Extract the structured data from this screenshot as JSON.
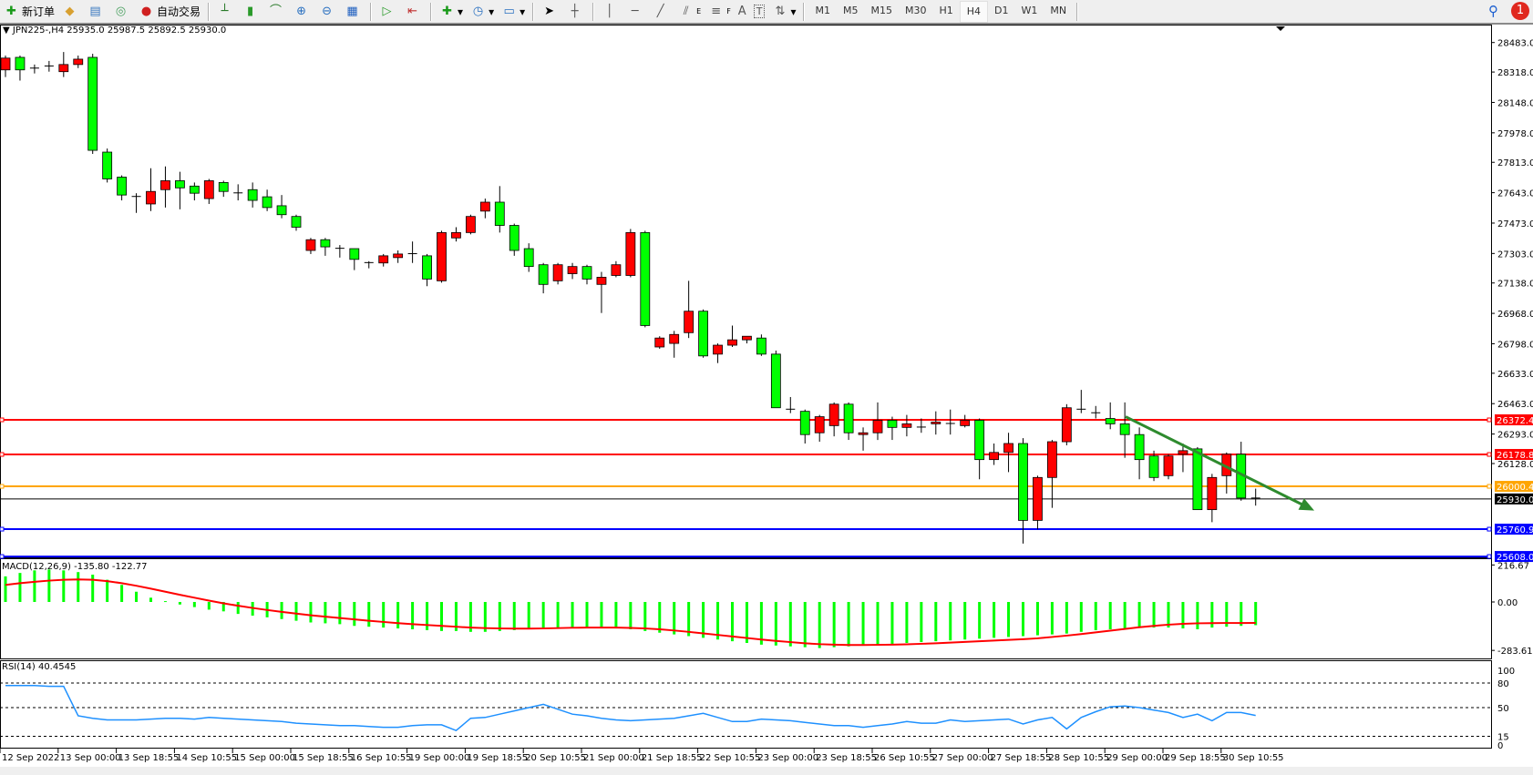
{
  "toolbar": {
    "new_order": "新订单",
    "auto_trading": "自动交易",
    "timeframes": [
      "M1",
      "M5",
      "M15",
      "M30",
      "H1",
      "H4",
      "D1",
      "W1",
      "MN"
    ],
    "active_timeframe": "H4",
    "notification_count": "1",
    "icons": [
      "new-order-icon",
      "market-watch-icon",
      "navigator-icon",
      "signals-icon",
      "auto-trading-icon",
      "bar-chart-icon",
      "candlestick-icon",
      "line-chart-icon",
      "zoom-in-icon",
      "zoom-out-icon",
      "tile-windows-icon",
      "auto-scroll-icon",
      "chart-shift-icon",
      "indicators-icon",
      "periods-icon",
      "templates-icon",
      "cursor-icon",
      "crosshair-icon",
      "vertical-line-icon",
      "horizontal-line-icon",
      "trendline-icon",
      "equidistant-channel-icon",
      "fibonacci-icon",
      "text-icon",
      "text-label-icon",
      "arrows-icon",
      "search-icon",
      "chat-icon"
    ],
    "tool_labels": {
      "equidistant": "E",
      "fibo": "F",
      "text": "A",
      "label": "T"
    }
  },
  "chart": {
    "symbol_header": "JPN225-,H4  25935.0 25987.5 25892.5 25930.0",
    "macd_header": "MACD(12,26,9) -135.80 -122.77",
    "rsi_header": "RSI(14) 40.4545"
  },
  "chart_data": {
    "type": "candlestick",
    "symbol": "JPN225-",
    "timeframe": "H4",
    "bid": "25930.0",
    "colors": {
      "bull": "#ff0000",
      "bear": "#00ff00",
      "bid_line": "#000000"
    },
    "ohlc": [
      [
        28330,
        28410,
        28290,
        28396
      ],
      [
        28400,
        28410,
        28270,
        28330
      ],
      [
        28340,
        28360,
        28310,
        28338
      ],
      [
        28350,
        28380,
        28320,
        28352
      ],
      [
        28320,
        28430,
        28290,
        28360
      ],
      [
        28360,
        28410,
        28340,
        28390
      ],
      [
        28400,
        28420,
        27860,
        27880
      ],
      [
        27870,
        27890,
        27700,
        27720
      ],
      [
        27730,
        27740,
        27600,
        27630
      ],
      [
        27620,
        27640,
        27530,
        27622
      ],
      [
        27580,
        27780,
        27540,
        27650
      ],
      [
        27660,
        27790,
        27560,
        27710
      ],
      [
        27710,
        27760,
        27550,
        27670
      ],
      [
        27680,
        27700,
        27600,
        27640
      ],
      [
        27610,
        27720,
        27580,
        27710
      ],
      [
        27700,
        27710,
        27620,
        27650
      ],
      [
        27640,
        27690,
        27600,
        27642
      ],
      [
        27660,
        27700,
        27560,
        27600
      ],
      [
        27620,
        27660,
        27540,
        27560
      ],
      [
        27570,
        27630,
        27500,
        27520
      ],
      [
        27510,
        27520,
        27430,
        27450
      ],
      [
        27320,
        27390,
        27300,
        27380
      ],
      [
        27380,
        27390,
        27290,
        27340
      ],
      [
        27330,
        27350,
        27280,
        27332
      ],
      [
        27330,
        27330,
        27210,
        27270
      ],
      [
        27250,
        27260,
        27220,
        27252
      ],
      [
        27250,
        27300,
        27230,
        27290
      ],
      [
        27280,
        27320,
        27250,
        27300
      ],
      [
        27300,
        27370,
        27250,
        27302
      ],
      [
        27290,
        27300,
        27120,
        27160
      ],
      [
        27150,
        27430,
        27140,
        27420
      ],
      [
        27390,
        27450,
        27370,
        27420
      ],
      [
        27420,
        27520,
        27410,
        27510
      ],
      [
        27540,
        27610,
        27500,
        27590
      ],
      [
        27590,
        27680,
        27420,
        27460
      ],
      [
        27460,
        27470,
        27290,
        27320
      ],
      [
        27330,
        27360,
        27200,
        27230
      ],
      [
        27240,
        27250,
        27080,
        27130
      ],
      [
        27150,
        27250,
        27130,
        27240
      ],
      [
        27190,
        27250,
        27160,
        27230
      ],
      [
        27230,
        27240,
        27130,
        27160
      ],
      [
        27130,
        27200,
        26970,
        27170
      ],
      [
        27180,
        27260,
        27170,
        27240
      ],
      [
        27180,
        27440,
        27170,
        27420
      ],
      [
        27420,
        27430,
        26890,
        26900
      ],
      [
        26780,
        26840,
        26770,
        26830
      ],
      [
        26800,
        26870,
        26720,
        26850
      ],
      [
        26860,
        27150,
        26830,
        26980
      ],
      [
        26980,
        26990,
        26720,
        26730
      ],
      [
        26740,
        26800,
        26690,
        26790
      ],
      [
        26790,
        26900,
        26780,
        26820
      ],
      [
        26820,
        26840,
        26800,
        26840
      ],
      [
        26830,
        26850,
        26730,
        26740
      ],
      [
        26740,
        26760,
        26440,
        26440
      ],
      [
        26430,
        26500,
        26410,
        26432
      ],
      [
        26420,
        26430,
        26240,
        26290
      ],
      [
        26300,
        26400,
        26250,
        26390
      ],
      [
        26340,
        26470,
        26280,
        26460
      ],
      [
        26460,
        26470,
        26260,
        26300
      ],
      [
        26290,
        26330,
        26200,
        26300
      ],
      [
        26300,
        26470,
        26260,
        26370
      ],
      [
        26370,
        26390,
        26260,
        26330
      ],
      [
        26330,
        26400,
        26280,
        26350
      ],
      [
        26330,
        26380,
        26300,
        26332
      ],
      [
        26350,
        26420,
        26290,
        26360
      ],
      [
        26350,
        26430,
        26290,
        26352
      ],
      [
        26340,
        26400,
        26330,
        26370
      ],
      [
        26370,
        26380,
        26040,
        26150
      ],
      [
        26150,
        26240,
        26120,
        26190
      ],
      [
        26190,
        26300,
        26080,
        26240
      ],
      [
        26240,
        26270,
        25680,
        25810
      ],
      [
        25810,
        26060,
        25760,
        26050
      ],
      [
        26050,
        26260,
        25880,
        26250
      ],
      [
        26250,
        26460,
        26230,
        26440
      ],
      [
        26430,
        26540,
        26410,
        26432
      ],
      [
        26410,
        26450,
        26380,
        26412
      ],
      [
        26380,
        26470,
        26320,
        26350
      ],
      [
        26350,
        26470,
        26160,
        26290
      ],
      [
        26290,
        26330,
        26040,
        26150
      ],
      [
        26170,
        26200,
        26030,
        26050
      ],
      [
        26060,
        26180,
        26040,
        26170
      ],
      [
        26180,
        26240,
        26080,
        26200
      ],
      [
        26210,
        26220,
        25870,
        25870
      ],
      [
        25870,
        26070,
        25800,
        26050
      ],
      [
        26060,
        26190,
        25960,
        26180
      ],
      [
        26180,
        26250,
        25920,
        25935
      ],
      [
        25935,
        25987.5,
        25892.5,
        25930
      ]
    ],
    "price_axis_ticks": [
      "28483.0",
      "28318.0",
      "28148.0",
      "27978.0",
      "27813.0",
      "27643.0",
      "27473.0",
      "27303.0",
      "27138.0",
      "26968.0",
      "26798.0",
      "26633.0",
      "26463.0",
      "26293.0",
      "26128.0"
    ],
    "horizontal_lines": [
      {
        "price": 26372.4,
        "label": "26372.4",
        "color": "#ff0000"
      },
      {
        "price": 26178.8,
        "label": "26178.8",
        "color": "#ff0000"
      },
      {
        "price": 26000.4,
        "label": "26000.4",
        "color": "#ffa500"
      },
      {
        "price": 25760.9,
        "label": "25760.9",
        "color": "#0000ff"
      },
      {
        "price": 25608.0,
        "label": "25608.0",
        "color": "#0000ff"
      }
    ],
    "trend_arrow": {
      "color": "#2e8b2e",
      "from_price": 26390,
      "to_price": 25865
    },
    "time_labels": [
      "12 Sep 2022",
      "13 Sep 00:00",
      "13 Sep 18:55",
      "14 Sep 10:55",
      "15 Sep 00:00",
      "15 Sep 18:55",
      "16 Sep 10:55",
      "19 Sep 00:00",
      "19 Sep 18:55",
      "20 Sep 10:55",
      "21 Sep 00:00",
      "21 Sep 18:55",
      "22 Sep 10:55",
      "23 Sep 00:00",
      "23 Sep 18:55",
      "26 Sep 10:55",
      "27 Sep 00:00",
      "27 Sep 18:55",
      "28 Sep 10:55",
      "29 Sep 00:00",
      "29 Sep 18:55",
      "30 Sep 10:55"
    ],
    "macd": {
      "params": "12,26,9",
      "axis_ticks": [
        "216.67",
        "0.00",
        "-283.61"
      ],
      "histogram_color": "#00ff00",
      "signal_color": "#ff0000",
      "main": [
        150,
        170,
        185,
        190,
        185,
        175,
        160,
        130,
        100,
        60,
        25,
        5,
        -15,
        -30,
        -45,
        -55,
        -70,
        -80,
        -90,
        -100,
        -110,
        -120,
        -125,
        -130,
        -140,
        -145,
        -150,
        -155,
        -160,
        -165,
        -170,
        -170,
        -175,
        -175,
        -170,
        -165,
        -160,
        -155,
        -150,
        -150,
        -150,
        -150,
        -155,
        -160,
        -170,
        -180,
        -190,
        -200,
        -210,
        -220,
        -230,
        -240,
        -250,
        -255,
        -260,
        -265,
        -270,
        -265,
        -260,
        -255,
        -250,
        -245,
        -240,
        -235,
        -230,
        -225,
        -220,
        -215,
        -210,
        -205,
        -200,
        -195,
        -190,
        -185,
        -175,
        -165,
        -160,
        -155,
        -150,
        -150,
        -150,
        -155,
        -160,
        -150,
        -145,
        -140,
        -135.8
      ],
      "signal": [
        100,
        110,
        118,
        125,
        130,
        132,
        130,
        122,
        110,
        95,
        78,
        60,
        42,
        25,
        8,
        -8,
        -22,
        -35,
        -47,
        -58,
        -68,
        -78,
        -86,
        -94,
        -102,
        -110,
        -117,
        -124,
        -130,
        -135,
        -140,
        -145,
        -150,
        -153,
        -155,
        -156,
        -156,
        -155,
        -153,
        -151,
        -150,
        -150,
        -150,
        -152,
        -155,
        -160,
        -167,
        -175,
        -184,
        -193,
        -202,
        -211,
        -220,
        -228,
        -235,
        -242,
        -247,
        -250,
        -252,
        -252,
        -251,
        -250,
        -248,
        -245,
        -242,
        -238,
        -234,
        -230,
        -226,
        -222,
        -218,
        -213,
        -205,
        -197,
        -188,
        -178,
        -168,
        -158,
        -148,
        -140,
        -133,
        -128,
        -125,
        -124,
        -123,
        -123,
        -122.77
      ]
    },
    "rsi": {
      "period": 14,
      "color": "#1e90ff",
      "levels": [
        80,
        50,
        15
      ],
      "axis_ticks": [
        "100",
        "80",
        "50",
        "15",
        "0"
      ],
      "range": [
        0,
        100
      ],
      "values": [
        77,
        77,
        77,
        76,
        76,
        40,
        37,
        35,
        35,
        35,
        36,
        37,
        37,
        36,
        38,
        37,
        36,
        35,
        34,
        33,
        31,
        30,
        29,
        28,
        28,
        27,
        26,
        26,
        28,
        29,
        29,
        22,
        37,
        38,
        42,
        46,
        50,
        54,
        48,
        42,
        40,
        37,
        35,
        34,
        35,
        36,
        37,
        40,
        43,
        38,
        33,
        33,
        36,
        35,
        34,
        32,
        30,
        28,
        28,
        26,
        28,
        30,
        33,
        31,
        31,
        35,
        33,
        34,
        35,
        36,
        30,
        35,
        38,
        24,
        38,
        45,
        51,
        52,
        50,
        47,
        44,
        38,
        42,
        34,
        44,
        44,
        40.45
      ]
    }
  }
}
